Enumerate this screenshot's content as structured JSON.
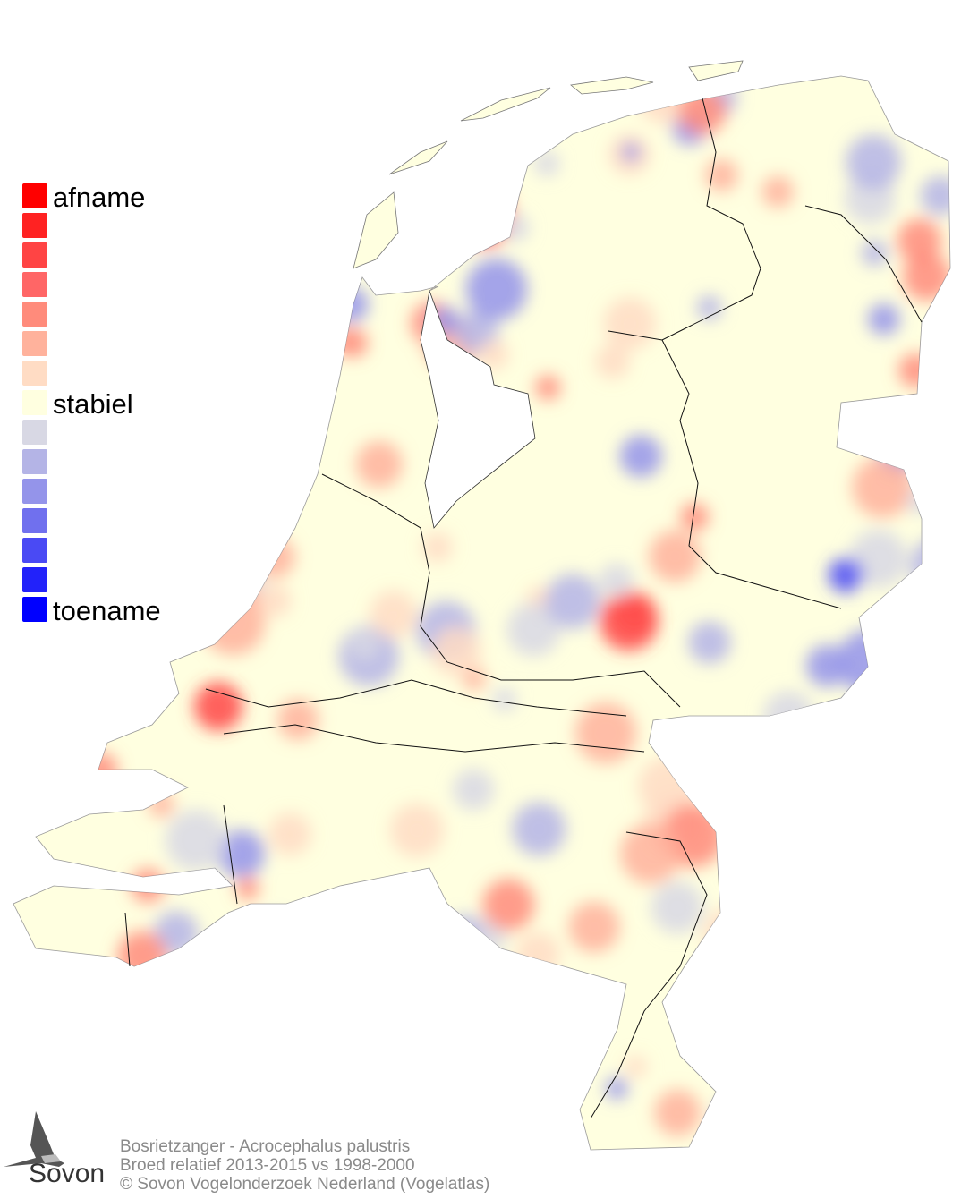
{
  "legend": {
    "top_label": "afname",
    "middle_label": "stabiel",
    "bottom_label": "toename",
    "colors": [
      "#ff0000",
      "#ff2222",
      "#ff4444",
      "#ff6666",
      "#ff8b7b",
      "#ffb29c",
      "#ffdcc4",
      "#ffffe0",
      "#d8d8e4",
      "#b4b4e6",
      "#9494ea",
      "#7070ee",
      "#4a4af4",
      "#2222fa",
      "#0000ff"
    ]
  },
  "caption": {
    "line1": "Bosrietzanger - Acrocephalus palustris",
    "line2": "Broed relatief 2013-2015 vs 1998-2000",
    "line3": "© Sovon Vogelonderzoek Nederland (Vogelatlas)"
  },
  "logo": {
    "text": "Sovon"
  },
  "map": {
    "base_color": "#ffffe0",
    "increase_color": "#7070ee",
    "decrease_color": "#ff6666"
  }
}
